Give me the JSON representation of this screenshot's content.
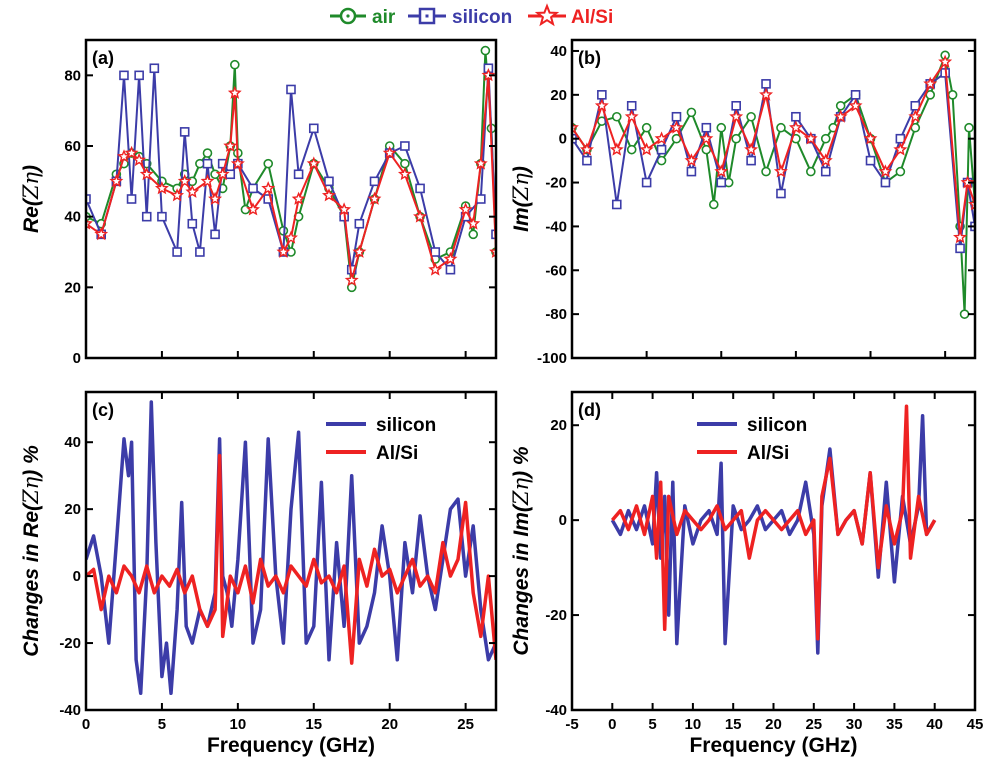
{
  "legend_top": [
    {
      "label": "air",
      "color": "#1f8a2a",
      "marker": "circle-dot"
    },
    {
      "label": "silicon",
      "color": "#3c3ca8",
      "marker": "square-dot"
    },
    {
      "label": "Al/Si",
      "color": "#ee2222",
      "marker": "star"
    }
  ],
  "chart_data": [
    {
      "panel": "(a)",
      "type": "line",
      "ylabel_prefix": "Re(",
      "ylabel_symbol": "Zη",
      "ylabel_suffix": ")",
      "xlim": [
        0,
        27
      ],
      "ylim": [
        0,
        90
      ],
      "xticks": [],
      "yticks": [
        0,
        20,
        40,
        60,
        80
      ],
      "series": [
        {
          "name": "air",
          "color": "#1f8a2a",
          "marker": "circle",
          "x": [
            0,
            1,
            2,
            2.5,
            3,
            3.5,
            4,
            5,
            6,
            6.5,
            7,
            7.5,
            8,
            8.5,
            9,
            9.5,
            9.8,
            10,
            10.5,
            11,
            12,
            13,
            13.5,
            14,
            15,
            16,
            17,
            17.5,
            18,
            19,
            20,
            21,
            22,
            23,
            24,
            25,
            25.5,
            26,
            26.3,
            26.7,
            27
          ],
          "y": [
            40,
            38,
            52,
            55,
            58,
            57,
            55,
            50,
            48,
            52,
            50,
            55,
            58,
            52,
            48,
            60,
            83,
            58,
            42,
            48,
            55,
            36,
            30,
            40,
            55,
            48,
            40,
            20,
            30,
            45,
            60,
            55,
            40,
            28,
            30,
            43,
            35,
            55,
            87,
            65,
            30
          ]
        },
        {
          "name": "silicon",
          "color": "#3c3ca8",
          "marker": "square",
          "x": [
            0,
            1,
            2,
            2.5,
            3,
            3.5,
            4,
            4.5,
            5,
            6,
            6.5,
            7,
            7.5,
            8,
            8.5,
            9,
            9.5,
            10,
            11,
            12,
            13,
            13.5,
            14,
            15,
            16,
            17,
            17.5,
            18,
            19,
            20,
            21,
            22,
            23,
            24,
            25,
            26,
            26.5,
            27
          ],
          "y": [
            45,
            35,
            50,
            80,
            45,
            80,
            40,
            82,
            40,
            30,
            64,
            38,
            30,
            55,
            35,
            55,
            52,
            55,
            48,
            45,
            30,
            76,
            52,
            65,
            50,
            40,
            25,
            38,
            50,
            58,
            60,
            48,
            30,
            25,
            40,
            45,
            82,
            35
          ]
        },
        {
          "name": "Al/Si",
          "color": "#ee2222",
          "marker": "star",
          "x": [
            0,
            1,
            2,
            2.5,
            3,
            3.5,
            4,
            5,
            6,
            6.5,
            7,
            8,
            8.5,
            9,
            9.5,
            9.8,
            10,
            11,
            12,
            13,
            13.5,
            14,
            15,
            16,
            17,
            17.5,
            18,
            19,
            20,
            21,
            22,
            23,
            24,
            25,
            25.5,
            26,
            26.5,
            27
          ],
          "y": [
            38,
            35,
            50,
            57,
            58,
            56,
            52,
            48,
            46,
            50,
            47,
            50,
            45,
            52,
            60,
            75,
            55,
            42,
            48,
            30,
            34,
            45,
            55,
            46,
            42,
            22,
            30,
            45,
            58,
            52,
            40,
            25,
            28,
            42,
            38,
            55,
            80,
            30
          ]
        }
      ]
    },
    {
      "panel": "(b)",
      "type": "line",
      "ylabel_prefix": "Im(",
      "ylabel_symbol": "Zη",
      "ylabel_suffix": ")",
      "xlim": [
        0,
        27
      ],
      "ylim": [
        -100,
        45
      ],
      "xticks": [],
      "yticks": [
        -100,
        -80,
        -60,
        -40,
        -20,
        0,
        20,
        40
      ],
      "series": [
        {
          "name": "air",
          "color": "#1f8a2a",
          "marker": "circle",
          "x": [
            0,
            1,
            2,
            3,
            4,
            5,
            6,
            7,
            8,
            9,
            9.5,
            10,
            10.5,
            11,
            12,
            13,
            14,
            15,
            16,
            17,
            17.5,
            18,
            19,
            20,
            21,
            22,
            23,
            24,
            25,
            25.5,
            26,
            26.3,
            26.6,
            27
          ],
          "y": [
            5,
            -5,
            8,
            10,
            -5,
            5,
            -10,
            0,
            12,
            -5,
            -30,
            5,
            -20,
            0,
            10,
            -15,
            5,
            0,
            -15,
            0,
            5,
            15,
            20,
            0,
            -20,
            -15,
            5,
            20,
            38,
            20,
            -40,
            -80,
            5,
            -30
          ]
        },
        {
          "name": "silicon",
          "color": "#3c3ca8",
          "marker": "square",
          "x": [
            0,
            1,
            2,
            3,
            4,
            5,
            6,
            7,
            8,
            9,
            10,
            11,
            12,
            13,
            14,
            15,
            16,
            17,
            18,
            19,
            20,
            21,
            22,
            23,
            24,
            25,
            26,
            26.5,
            27
          ],
          "y": [
            0,
            -10,
            20,
            -30,
            15,
            -20,
            -5,
            10,
            -15,
            5,
            -20,
            15,
            -10,
            25,
            -25,
            10,
            0,
            -15,
            10,
            20,
            -10,
            -20,
            0,
            15,
            25,
            30,
            -50,
            -20,
            -40
          ]
        },
        {
          "name": "Al/Si",
          "color": "#ee2222",
          "marker": "star",
          "x": [
            0,
            1,
            2,
            3,
            4,
            5,
            6,
            7,
            8,
            9,
            10,
            11,
            12,
            13,
            14,
            15,
            16,
            17,
            18,
            19,
            20,
            21,
            22,
            23,
            24,
            25,
            26,
            26.5,
            27
          ],
          "y": [
            5,
            -5,
            15,
            -5,
            10,
            -5,
            0,
            5,
            -10,
            0,
            -15,
            10,
            -5,
            20,
            -15,
            5,
            0,
            -10,
            10,
            15,
            0,
            -15,
            -5,
            10,
            25,
            35,
            -45,
            -20,
            -30
          ]
        }
      ]
    },
    {
      "panel": "(c)",
      "type": "line",
      "ylabel_prefix": "Changes in Re(",
      "ylabel_symbol": "Zη",
      "ylabel_suffix": ") %",
      "xlabel": "Frequency (GHz)",
      "xlim": [
        0,
        27
      ],
      "ylim": [
        -40,
        55
      ],
      "xticks": [
        0,
        5,
        10,
        15,
        20,
        25
      ],
      "yticks": [
        -40,
        -20,
        0,
        20,
        40
      ],
      "legend": [
        "silicon",
        "Al/Si"
      ],
      "series": [
        {
          "name": "silicon",
          "color": "#3c3ca8",
          "x": [
            0,
            0.5,
            1,
            1.5,
            2,
            2.5,
            2.8,
            3,
            3.3,
            3.6,
            4,
            4.3,
            4.6,
            5,
            5.3,
            5.6,
            6,
            6.3,
            6.6,
            7,
            7.5,
            8,
            8.5,
            8.8,
            9,
            9.3,
            9.6,
            10,
            10.5,
            11,
            11.5,
            12,
            12.5,
            13,
            13.5,
            14,
            14.5,
            15,
            15.5,
            16,
            16.5,
            17,
            17.5,
            18,
            18.5,
            19,
            19.5,
            20,
            20.5,
            21,
            21.5,
            22,
            22.5,
            23,
            23.5,
            24,
            24.5,
            25,
            25.5,
            26,
            26.5,
            27
          ],
          "y": [
            5,
            12,
            0,
            -20,
            10,
            41,
            30,
            40,
            -25,
            -35,
            0,
            52,
            10,
            -30,
            -20,
            -35,
            -10,
            22,
            -15,
            -20,
            -10,
            -15,
            -5,
            41,
            0,
            -5,
            -15,
            5,
            40,
            -20,
            -10,
            41,
            0,
            -20,
            20,
            43,
            -20,
            -15,
            28,
            -25,
            10,
            -15,
            30,
            -20,
            -15,
            -5,
            15,
            0,
            -25,
            10,
            -5,
            18,
            0,
            -10,
            5,
            20,
            23,
            0,
            15,
            -10,
            -25,
            -20
          ]
        },
        {
          "name": "Al/Si",
          "color": "#ee2222",
          "x": [
            0,
            0.5,
            1,
            1.5,
            2,
            2.5,
            3,
            3.5,
            4,
            4.5,
            5,
            5.5,
            6,
            6.5,
            7,
            7.5,
            8,
            8.5,
            8.8,
            9,
            9.5,
            10,
            10.5,
            11,
            11.5,
            12,
            12.5,
            13,
            13.5,
            14,
            14.5,
            15,
            15.5,
            16,
            16.5,
            17,
            17.5,
            18,
            18.5,
            19,
            19.5,
            20,
            20.5,
            21,
            21.5,
            22,
            22.5,
            23,
            23.5,
            24,
            24.5,
            25,
            25.5,
            26,
            26.5,
            27
          ],
          "y": [
            0,
            2,
            -10,
            0,
            -5,
            3,
            0,
            -5,
            3,
            -5,
            0,
            -3,
            2,
            -5,
            0,
            -10,
            -15,
            -10,
            36,
            -18,
            0,
            -5,
            3,
            -8,
            5,
            -3,
            0,
            -5,
            3,
            0,
            -3,
            5,
            -2,
            0,
            -5,
            3,
            -26,
            5,
            -3,
            8,
            0,
            2,
            -5,
            0,
            5,
            -3,
            0,
            -5,
            10,
            0,
            5,
            22,
            -5,
            -18,
            0,
            -25
          ]
        }
      ]
    },
    {
      "panel": "(d)",
      "type": "line",
      "ylabel_prefix": "Changes in Im(",
      "ylabel_symbol": "Zη",
      "ylabel_suffix": ") %",
      "xlabel": "Frequency (GHz)",
      "xlim": [
        -5,
        45
      ],
      "ylim": [
        -40,
        27
      ],
      "xticks": [
        -5,
        0,
        5,
        10,
        15,
        20,
        25,
        30,
        35,
        40,
        45
      ],
      "yticks": [
        -40,
        -20,
        0,
        20
      ],
      "legend": [
        "silicon",
        "Al/Si"
      ],
      "series": [
        {
          "name": "silicon",
          "color": "#3c3ca8",
          "x": [
            0,
            1,
            2,
            3,
            4,
            5,
            5.5,
            6,
            6.5,
            7,
            7.5,
            8,
            9,
            10,
            11,
            12,
            13,
            13.5,
            14,
            15,
            16,
            17,
            18,
            19,
            20,
            21,
            22,
            23,
            24,
            25,
            25.5,
            26,
            27,
            28,
            29,
            30,
            31,
            32,
            33,
            34,
            35,
            36,
            37,
            38,
            38.5,
            39,
            40
          ],
          "y": [
            0,
            -3,
            2,
            -2,
            3,
            -5,
            10,
            -8,
            5,
            -20,
            8,
            -26,
            3,
            -5,
            0,
            2,
            -3,
            12,
            -26,
            3,
            -2,
            0,
            3,
            -2,
            0,
            2,
            -3,
            0,
            8,
            -3,
            -28,
            3,
            15,
            -3,
            0,
            2,
            -5,
            10,
            -12,
            8,
            -13,
            5,
            -5,
            3,
            22,
            -3,
            0
          ]
        },
        {
          "name": "Al/Si",
          "color": "#ee2222",
          "x": [
            0,
            1,
            2,
            3,
            4,
            5,
            5.5,
            6,
            6.5,
            7,
            8,
            9,
            10,
            11,
            12,
            13,
            14,
            15,
            16,
            17,
            18,
            19,
            20,
            21,
            22,
            23,
            24,
            25,
            25.5,
            26,
            27,
            28,
            29,
            30,
            31,
            32,
            33,
            34,
            35,
            36,
            36.5,
            37,
            38,
            39,
            40
          ],
          "y": [
            0,
            2,
            -2,
            3,
            -3,
            5,
            -8,
            8,
            -23,
            5,
            -3,
            2,
            0,
            -2,
            0,
            3,
            -2,
            0,
            2,
            -8,
            0,
            2,
            0,
            -2,
            0,
            2,
            -3,
            0,
            -25,
            5,
            13,
            -3,
            0,
            2,
            -5,
            10,
            -10,
            3,
            -5,
            2,
            24,
            -8,
            5,
            -3,
            0
          ]
        }
      ]
    }
  ]
}
